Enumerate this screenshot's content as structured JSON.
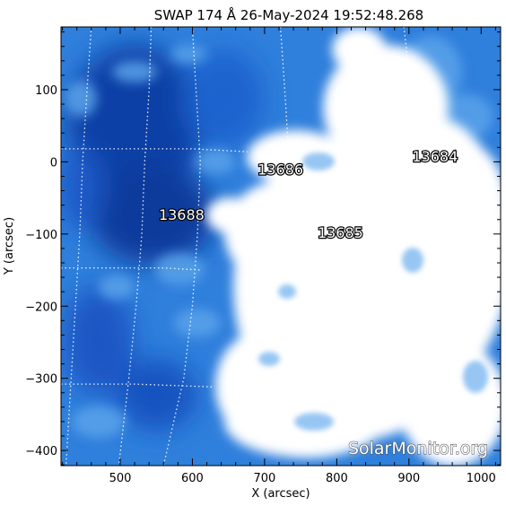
{
  "chart_data": {
    "type": "image",
    "title": "SWAP 174 Å 26-May-2024 19:52:48.268",
    "xlabel": "X (arcsec)",
    "ylabel": "Y (arcsec)",
    "xlim": [
      418,
      1027
    ],
    "ylim": [
      -421,
      187
    ],
    "x_ticks": [
      500,
      600,
      700,
      800,
      900,
      1000
    ],
    "y_ticks": [
      100,
      0,
      -100,
      -200,
      -300,
      -400
    ],
    "x_tick_labels": [
      "500",
      "600",
      "700",
      "800",
      "900",
      "1000"
    ],
    "y_tick_labels": [
      "100",
      "0",
      "−100",
      "−200",
      "−300",
      "−400"
    ],
    "colormap": "blue-white",
    "active_regions": [
      {
        "label": "13688",
        "x": 585,
        "y": -73
      },
      {
        "label": "13686",
        "x": 722,
        "y": -10
      },
      {
        "label": "13685",
        "x": 805,
        "y": -98
      },
      {
        "label": "13684",
        "x": 936,
        "y": 8
      }
    ],
    "grid_longitudes": [
      [
        [
          460,
          187
        ],
        [
          454,
          100
        ],
        [
          448,
          0
        ],
        [
          444,
          -100
        ],
        [
          438,
          -200
        ],
        [
          432,
          -300
        ],
        [
          425,
          -421
        ]
      ],
      [
        [
          543,
          187
        ],
        [
          540,
          100
        ],
        [
          534,
          0
        ],
        [
          530,
          -100
        ],
        [
          522,
          -200
        ],
        [
          512,
          -300
        ],
        [
          498,
          -421
        ]
      ],
      [
        [
          600,
          187
        ],
        [
          605,
          100
        ],
        [
          611,
          0
        ],
        [
          607,
          -100
        ],
        [
          600,
          -200
        ],
        [
          588,
          -300
        ],
        [
          560,
          -421
        ]
      ],
      [
        [
          722,
          187
        ],
        [
          728,
          100
        ],
        [
          733,
          20
        ]
      ],
      [
        [
          893,
          187
        ],
        [
          903,
          100
        ],
        [
          912,
          40
        ]
      ]
    ],
    "grid_latitudes": [
      [
        [
          418,
          18
        ],
        [
          600,
          18
        ],
        [
          676,
          14
        ]
      ],
      [
        [
          418,
          -147
        ],
        [
          560,
          -147
        ],
        [
          610,
          -150
        ]
      ],
      [
        [
          418,
          -308
        ],
        [
          520,
          -308
        ],
        [
          630,
          -312
        ]
      ]
    ],
    "watermark": "SolarMonitor.org"
  }
}
